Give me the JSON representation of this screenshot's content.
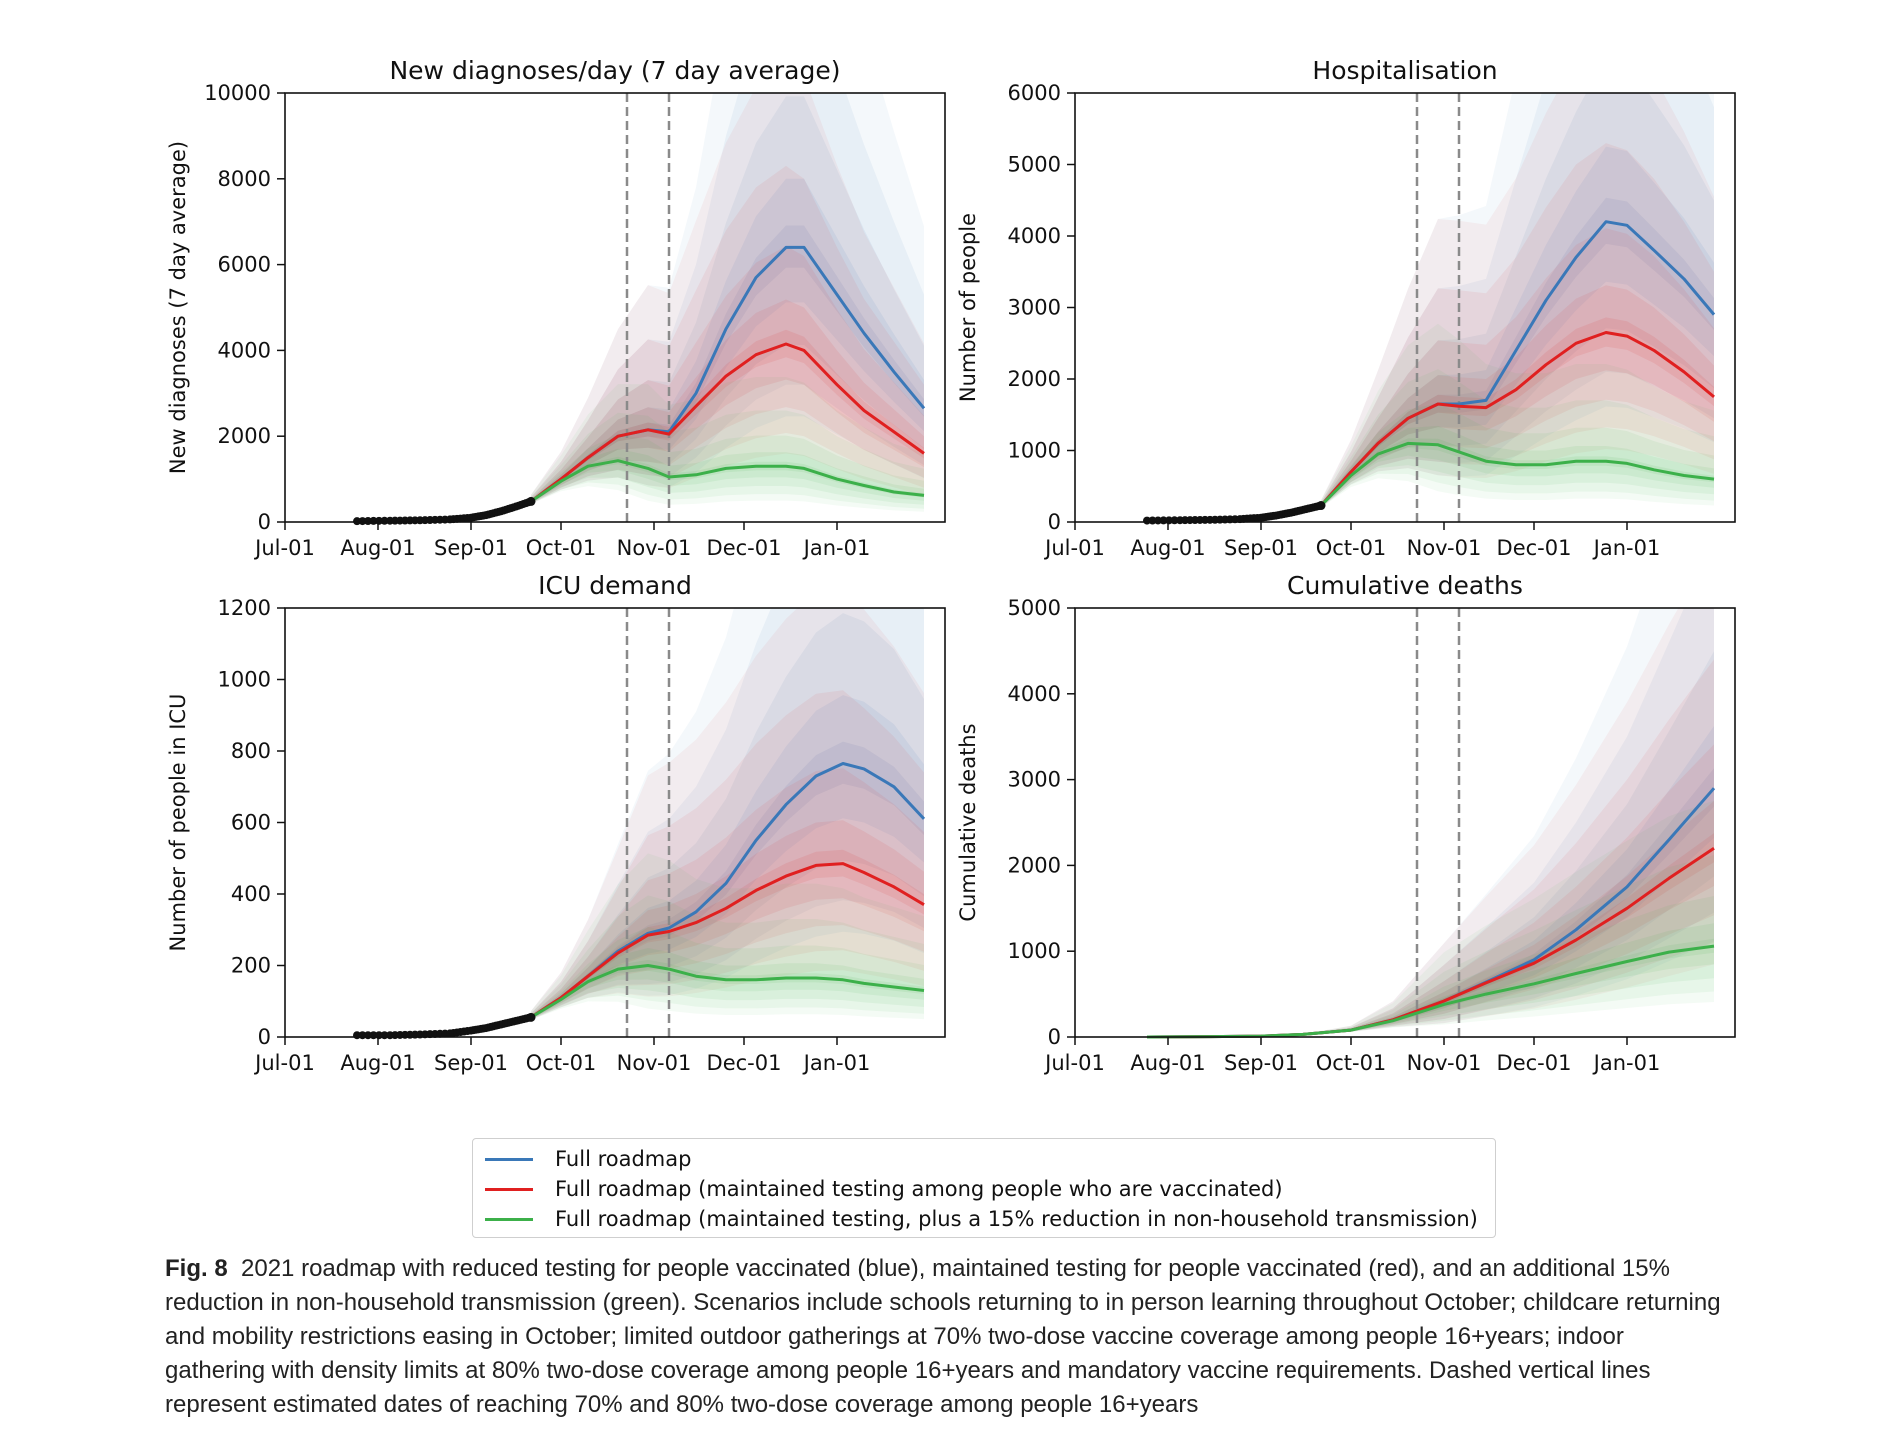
{
  "chart_data": [
    {
      "type": "line",
      "title": "New diagnoses/day (7 day average)",
      "xlabel": "",
      "ylabel": "New diagnoses (7 day average)",
      "ylim": [
        0,
        10000
      ],
      "yticks": [
        0,
        2000,
        4000,
        6000,
        8000,
        10000
      ],
      "xticks": [
        "Jul-01",
        "Aug-01",
        "Sep-01",
        "Oct-01",
        "Nov-01",
        "Dec-01",
        "Jan-01"
      ],
      "vlines": [
        "Oct-23",
        "Nov-06"
      ],
      "observed": {
        "x": [
          "Jul-25",
          "Aug-05",
          "Aug-15",
          "Aug-25",
          "Sep-01",
          "Sep-06",
          "Sep-11",
          "Sep-16",
          "Sep-21"
        ],
        "y": [
          20,
          30,
          40,
          60,
          100,
          160,
          250,
          360,
          480
        ]
      },
      "series": [
        {
          "name": "Full roadmap",
          "color": "#3a78b8",
          "x": [
            "Sep-21",
            "Oct-01",
            "Oct-10",
            "Oct-20",
            "Oct-30",
            "Nov-06",
            "Nov-15",
            "Nov-25",
            "Dec-05",
            "Dec-15",
            "Dec-21",
            "Jan-01",
            "Jan-10",
            "Jan-20",
            "Jan-30"
          ],
          "y": [
            480,
            1000,
            1500,
            2000,
            2150,
            2100,
            3000,
            4500,
            5700,
            6400,
            6400,
            5300,
            4400,
            3500,
            2650
          ]
        },
        {
          "name": "Full roadmap (maintained testing among people who are vaccinated)",
          "color": "#e02020",
          "x": [
            "Sep-21",
            "Oct-01",
            "Oct-10",
            "Oct-20",
            "Oct-30",
            "Nov-06",
            "Nov-15",
            "Nov-25",
            "Dec-05",
            "Dec-15",
            "Dec-21",
            "Jan-01",
            "Jan-10",
            "Jan-20",
            "Jan-30"
          ],
          "y": [
            480,
            1000,
            1500,
            2000,
            2150,
            2050,
            2700,
            3400,
            3900,
            4150,
            4000,
            3200,
            2600,
            2100,
            1600
          ]
        },
        {
          "name": "Full roadmap (maintained testing, plus a 15% reduction in non-household transmission)",
          "color": "#3cb04a",
          "x": [
            "Sep-21",
            "Oct-01",
            "Oct-10",
            "Oct-20",
            "Oct-30",
            "Nov-06",
            "Nov-15",
            "Nov-25",
            "Dec-05",
            "Dec-15",
            "Dec-21",
            "Jan-01",
            "Jan-10",
            "Jan-20",
            "Jan-30"
          ],
          "y": [
            480,
            950,
            1300,
            1430,
            1250,
            1050,
            1100,
            1250,
            1300,
            1300,
            1250,
            1000,
            850,
            700,
            620
          ]
        }
      ]
    },
    {
      "type": "line",
      "title": "Hospitalisation",
      "xlabel": "",
      "ylabel": "Number of people",
      "ylim": [
        0,
        6000
      ],
      "yticks": [
        0,
        1000,
        2000,
        3000,
        4000,
        5000,
        6000
      ],
      "xticks": [
        "Jul-01",
        "Aug-01",
        "Sep-01",
        "Oct-01",
        "Nov-01",
        "Dec-01",
        "Jan-01"
      ],
      "vlines": [
        "Oct-23",
        "Nov-06"
      ],
      "observed": {
        "x": [
          "Jul-25",
          "Aug-05",
          "Aug-15",
          "Aug-25",
          "Sep-01",
          "Sep-06",
          "Sep-11",
          "Sep-16",
          "Sep-21"
        ],
        "y": [
          20,
          25,
          30,
          40,
          60,
          90,
          130,
          180,
          230
        ]
      },
      "series": [
        {
          "name": "Full roadmap",
          "color": "#3a78b8",
          "x": [
            "Sep-21",
            "Oct-01",
            "Oct-10",
            "Oct-20",
            "Oct-30",
            "Nov-06",
            "Nov-15",
            "Nov-25",
            "Dec-05",
            "Dec-15",
            "Dec-25",
            "Jan-01",
            "Jan-10",
            "Jan-20",
            "Jan-30"
          ],
          "y": [
            230,
            700,
            1100,
            1450,
            1650,
            1650,
            1700,
            2400,
            3100,
            3700,
            4200,
            4150,
            3800,
            3400,
            2900
          ]
        },
        {
          "name": "Full roadmap (maintained testing among people who are vaccinated)",
          "color": "#e02020",
          "x": [
            "Sep-21",
            "Oct-01",
            "Oct-10",
            "Oct-20",
            "Oct-30",
            "Nov-06",
            "Nov-15",
            "Nov-25",
            "Dec-05",
            "Dec-15",
            "Dec-25",
            "Jan-01",
            "Jan-10",
            "Jan-20",
            "Jan-30"
          ],
          "y": [
            230,
            700,
            1100,
            1450,
            1650,
            1620,
            1600,
            1850,
            2200,
            2500,
            2650,
            2600,
            2400,
            2100,
            1750
          ]
        },
        {
          "name": "Full roadmap (maintained testing, plus a 15% reduction in non-household transmission)",
          "color": "#3cb04a",
          "x": [
            "Sep-21",
            "Oct-01",
            "Oct-10",
            "Oct-20",
            "Oct-30",
            "Nov-06",
            "Nov-15",
            "Nov-25",
            "Dec-05",
            "Dec-15",
            "Dec-25",
            "Jan-01",
            "Jan-10",
            "Jan-20",
            "Jan-30"
          ],
          "y": [
            230,
            650,
            950,
            1100,
            1080,
            980,
            850,
            800,
            800,
            850,
            850,
            820,
            730,
            650,
            600
          ]
        }
      ]
    },
    {
      "type": "line",
      "title": "ICU demand",
      "xlabel": "",
      "ylabel": "Number of people in ICU",
      "ylim": [
        0,
        1200
      ],
      "yticks": [
        0,
        200,
        400,
        600,
        800,
        1000,
        1200
      ],
      "xticks": [
        "Jul-01",
        "Aug-01",
        "Sep-01",
        "Oct-01",
        "Nov-01",
        "Dec-01",
        "Jan-01"
      ],
      "vlines": [
        "Oct-23",
        "Nov-06"
      ],
      "observed": {
        "x": [
          "Jul-25",
          "Aug-05",
          "Aug-15",
          "Aug-25",
          "Sep-01",
          "Sep-06",
          "Sep-11",
          "Sep-16",
          "Sep-21"
        ],
        "y": [
          5,
          5,
          7,
          10,
          18,
          25,
          35,
          45,
          55
        ]
      },
      "series": [
        {
          "name": "Full roadmap",
          "color": "#3a78b8",
          "x": [
            "Sep-21",
            "Oct-01",
            "Oct-10",
            "Oct-20",
            "Oct-30",
            "Nov-06",
            "Nov-15",
            "Nov-25",
            "Dec-05",
            "Dec-15",
            "Dec-25",
            "Jan-03",
            "Jan-10",
            "Jan-20",
            "Jan-30"
          ],
          "y": [
            55,
            110,
            170,
            240,
            290,
            305,
            350,
            430,
            550,
            650,
            730,
            765,
            750,
            700,
            610
          ]
        },
        {
          "name": "Full roadmap (maintained testing among people who are vaccinated)",
          "color": "#e02020",
          "x": [
            "Sep-21",
            "Oct-01",
            "Oct-10",
            "Oct-20",
            "Oct-30",
            "Nov-06",
            "Nov-15",
            "Nov-25",
            "Dec-05",
            "Dec-15",
            "Dec-25",
            "Jan-03",
            "Jan-10",
            "Jan-20",
            "Jan-30"
          ],
          "y": [
            55,
            110,
            170,
            235,
            285,
            295,
            320,
            360,
            410,
            450,
            480,
            485,
            460,
            420,
            370
          ]
        },
        {
          "name": "Full roadmap (maintained testing, plus a 15% reduction in non-household transmission)",
          "color": "#3cb04a",
          "x": [
            "Sep-21",
            "Oct-01",
            "Oct-10",
            "Oct-20",
            "Oct-30",
            "Nov-06",
            "Nov-15",
            "Nov-25",
            "Dec-05",
            "Dec-15",
            "Dec-25",
            "Jan-03",
            "Jan-10",
            "Jan-20",
            "Jan-30"
          ],
          "y": [
            55,
            105,
            155,
            190,
            200,
            190,
            170,
            160,
            160,
            165,
            165,
            160,
            150,
            140,
            130
          ]
        }
      ]
    },
    {
      "type": "line",
      "title": "Cumulative deaths",
      "xlabel": "",
      "ylabel": "Cumulative deaths",
      "ylim": [
        0,
        5000
      ],
      "yticks": [
        0,
        1000,
        2000,
        3000,
        4000,
        5000
      ],
      "xticks": [
        "Jul-01",
        "Aug-01",
        "Sep-01",
        "Oct-01",
        "Nov-01",
        "Dec-01",
        "Jan-01"
      ],
      "vlines": [
        "Oct-23",
        "Nov-06"
      ],
      "series": [
        {
          "name": "Full roadmap",
          "color": "#3a78b8",
          "x": [
            "Jul-25",
            "Aug-15",
            "Sep-01",
            "Sep-15",
            "Oct-01",
            "Oct-15",
            "Nov-01",
            "Nov-15",
            "Dec-01",
            "Dec-15",
            "Jan-01",
            "Jan-15",
            "Jan-30"
          ],
          "y": [
            0,
            5,
            10,
            30,
            80,
            200,
            420,
            640,
            900,
            1250,
            1750,
            2300,
            2900
          ]
        },
        {
          "name": "Full roadmap (maintained testing among people who are vaccinated)",
          "color": "#e02020",
          "x": [
            "Jul-25",
            "Aug-15",
            "Sep-01",
            "Sep-15",
            "Oct-01",
            "Oct-15",
            "Nov-01",
            "Nov-15",
            "Dec-01",
            "Dec-15",
            "Jan-01",
            "Jan-15",
            "Jan-30"
          ],
          "y": [
            0,
            5,
            10,
            30,
            80,
            200,
            420,
            630,
            860,
            1130,
            1500,
            1850,
            2200
          ]
        },
        {
          "name": "Full roadmap (maintained testing, plus a 15% reduction in non-household transmission)",
          "color": "#3cb04a",
          "x": [
            "Jul-25",
            "Aug-15",
            "Sep-01",
            "Sep-15",
            "Oct-01",
            "Oct-15",
            "Nov-01",
            "Nov-15",
            "Dec-01",
            "Dec-15",
            "Jan-01",
            "Jan-15",
            "Jan-30"
          ],
          "y": [
            0,
            5,
            10,
            30,
            80,
            190,
            380,
            500,
            620,
            740,
            880,
            990,
            1060
          ]
        }
      ]
    }
  ],
  "legend": [
    {
      "label": "Full roadmap",
      "color": "#3a78b8"
    },
    {
      "label": "Full roadmap (maintained testing among people who are vaccinated)",
      "color": "#e02020"
    },
    {
      "label": "Full roadmap (maintained testing, plus a 15% reduction in non-household transmission)",
      "color": "#3cb04a"
    }
  ],
  "caption": {
    "label": "Fig. 8",
    "text": "2021 roadmap with reduced testing for people vaccinated (blue), maintained testing for people vaccinated (red), and an additional 15% reduction in non-household transmission (green). Scenarios include schools returning to in person learning throughout October; childcare returning and mobility restrictions easing in October; limited outdoor gatherings at 70% two-dose vaccine coverage among people 16+years; indoor gathering with density limits at 80% two-dose coverage among people 16+years and mandatory vaccine requirements. Dashed vertical lines represent estimated dates of reaching 70% and 80% two-dose coverage among people 16+years"
  }
}
